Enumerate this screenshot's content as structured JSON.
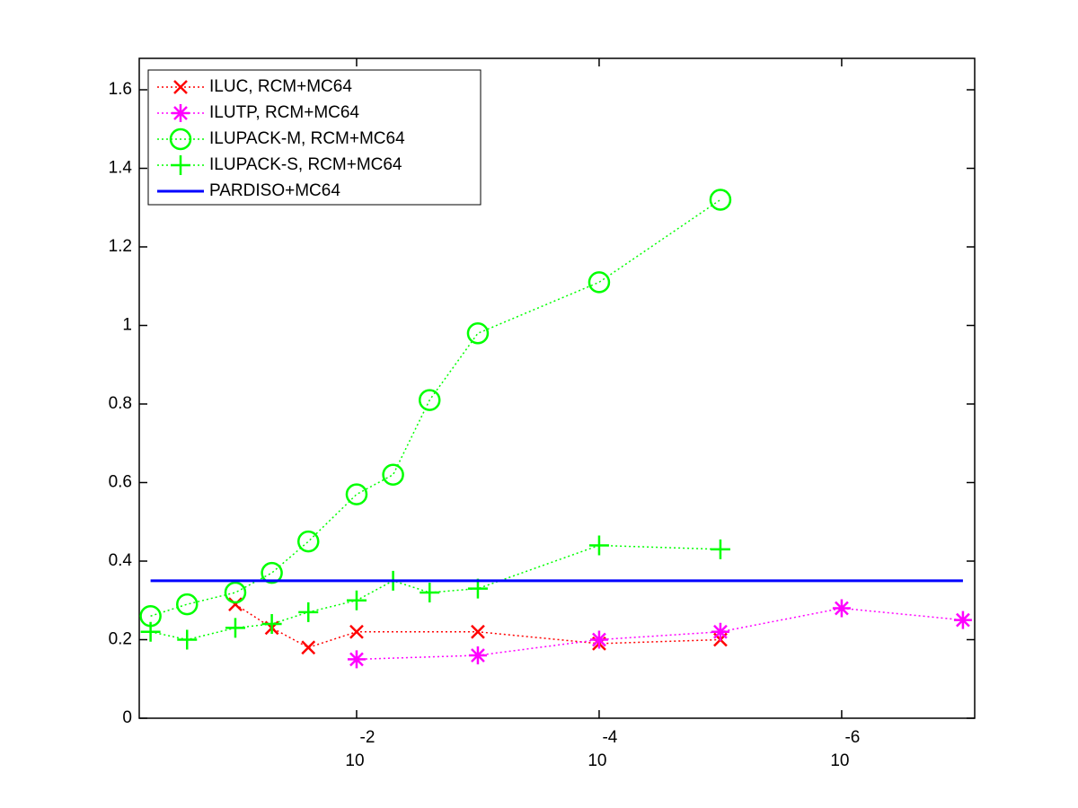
{
  "chart_data": {
    "type": "line",
    "xscale": "log",
    "xreversed": true,
    "xlim": [
      0.62,
      8e-08
    ],
    "ylim": [
      0,
      1.68
    ],
    "xticks": [
      {
        "value": 0.01,
        "label": "10",
        "exponent": "-2"
      },
      {
        "value": 0.0001,
        "label": "10",
        "exponent": "-4"
      },
      {
        "value": 1e-06,
        "label": "10",
        "exponent": "-6"
      }
    ],
    "yticks": [
      0,
      0.2,
      0.4,
      0.6,
      0.8,
      1,
      1.2,
      1.4,
      1.6
    ],
    "legend": "upper left",
    "series": [
      {
        "name": "ILUC, RCM+MC64",
        "color": "#ff0000",
        "marker": "x",
        "linestyle": "dotted",
        "x": [
          0.1,
          0.05,
          0.025,
          0.01,
          0.001,
          0.0001,
          1e-05
        ],
        "values": [
          0.29,
          0.23,
          0.18,
          0.22,
          0.22,
          0.19,
          0.2
        ]
      },
      {
        "name": "ILUTP, RCM+MC64",
        "color": "#ff00ff",
        "marker": "star",
        "linestyle": "dotted",
        "x": [
          0.01,
          0.001,
          0.0001,
          1e-05,
          1e-06,
          1e-07
        ],
        "values": [
          0.15,
          0.16,
          0.2,
          0.22,
          0.28,
          0.25
        ]
      },
      {
        "name": "ILUPACK-M, RCM+MC64",
        "color": "#00ff00",
        "marker": "circle",
        "linestyle": "dotted",
        "x": [
          0.5,
          0.25,
          0.1,
          0.05,
          0.025,
          0.01,
          0.005,
          0.0025,
          0.001,
          0.0001,
          1e-05
        ],
        "values": [
          0.26,
          0.29,
          0.32,
          0.37,
          0.45,
          0.57,
          0.62,
          0.81,
          0.98,
          1.11,
          1.32
        ]
      },
      {
        "name": "ILUPACK-S, RCM+MC64",
        "color": "#00ff00",
        "marker": "plus",
        "linestyle": "dotted",
        "x": [
          0.5,
          0.25,
          0.1,
          0.05,
          0.025,
          0.01,
          0.005,
          0.0025,
          0.001,
          0.0001,
          1e-05
        ],
        "values": [
          0.22,
          0.2,
          0.23,
          0.24,
          0.27,
          0.3,
          0.35,
          0.32,
          0.33,
          0.44,
          0.43
        ]
      },
      {
        "name": "PARDISO+MC64",
        "color": "#0000ff",
        "marker": "none",
        "linestyle": "solid",
        "x": [
          0.5,
          1e-07
        ],
        "values": [
          0.35,
          0.35
        ]
      }
    ]
  }
}
